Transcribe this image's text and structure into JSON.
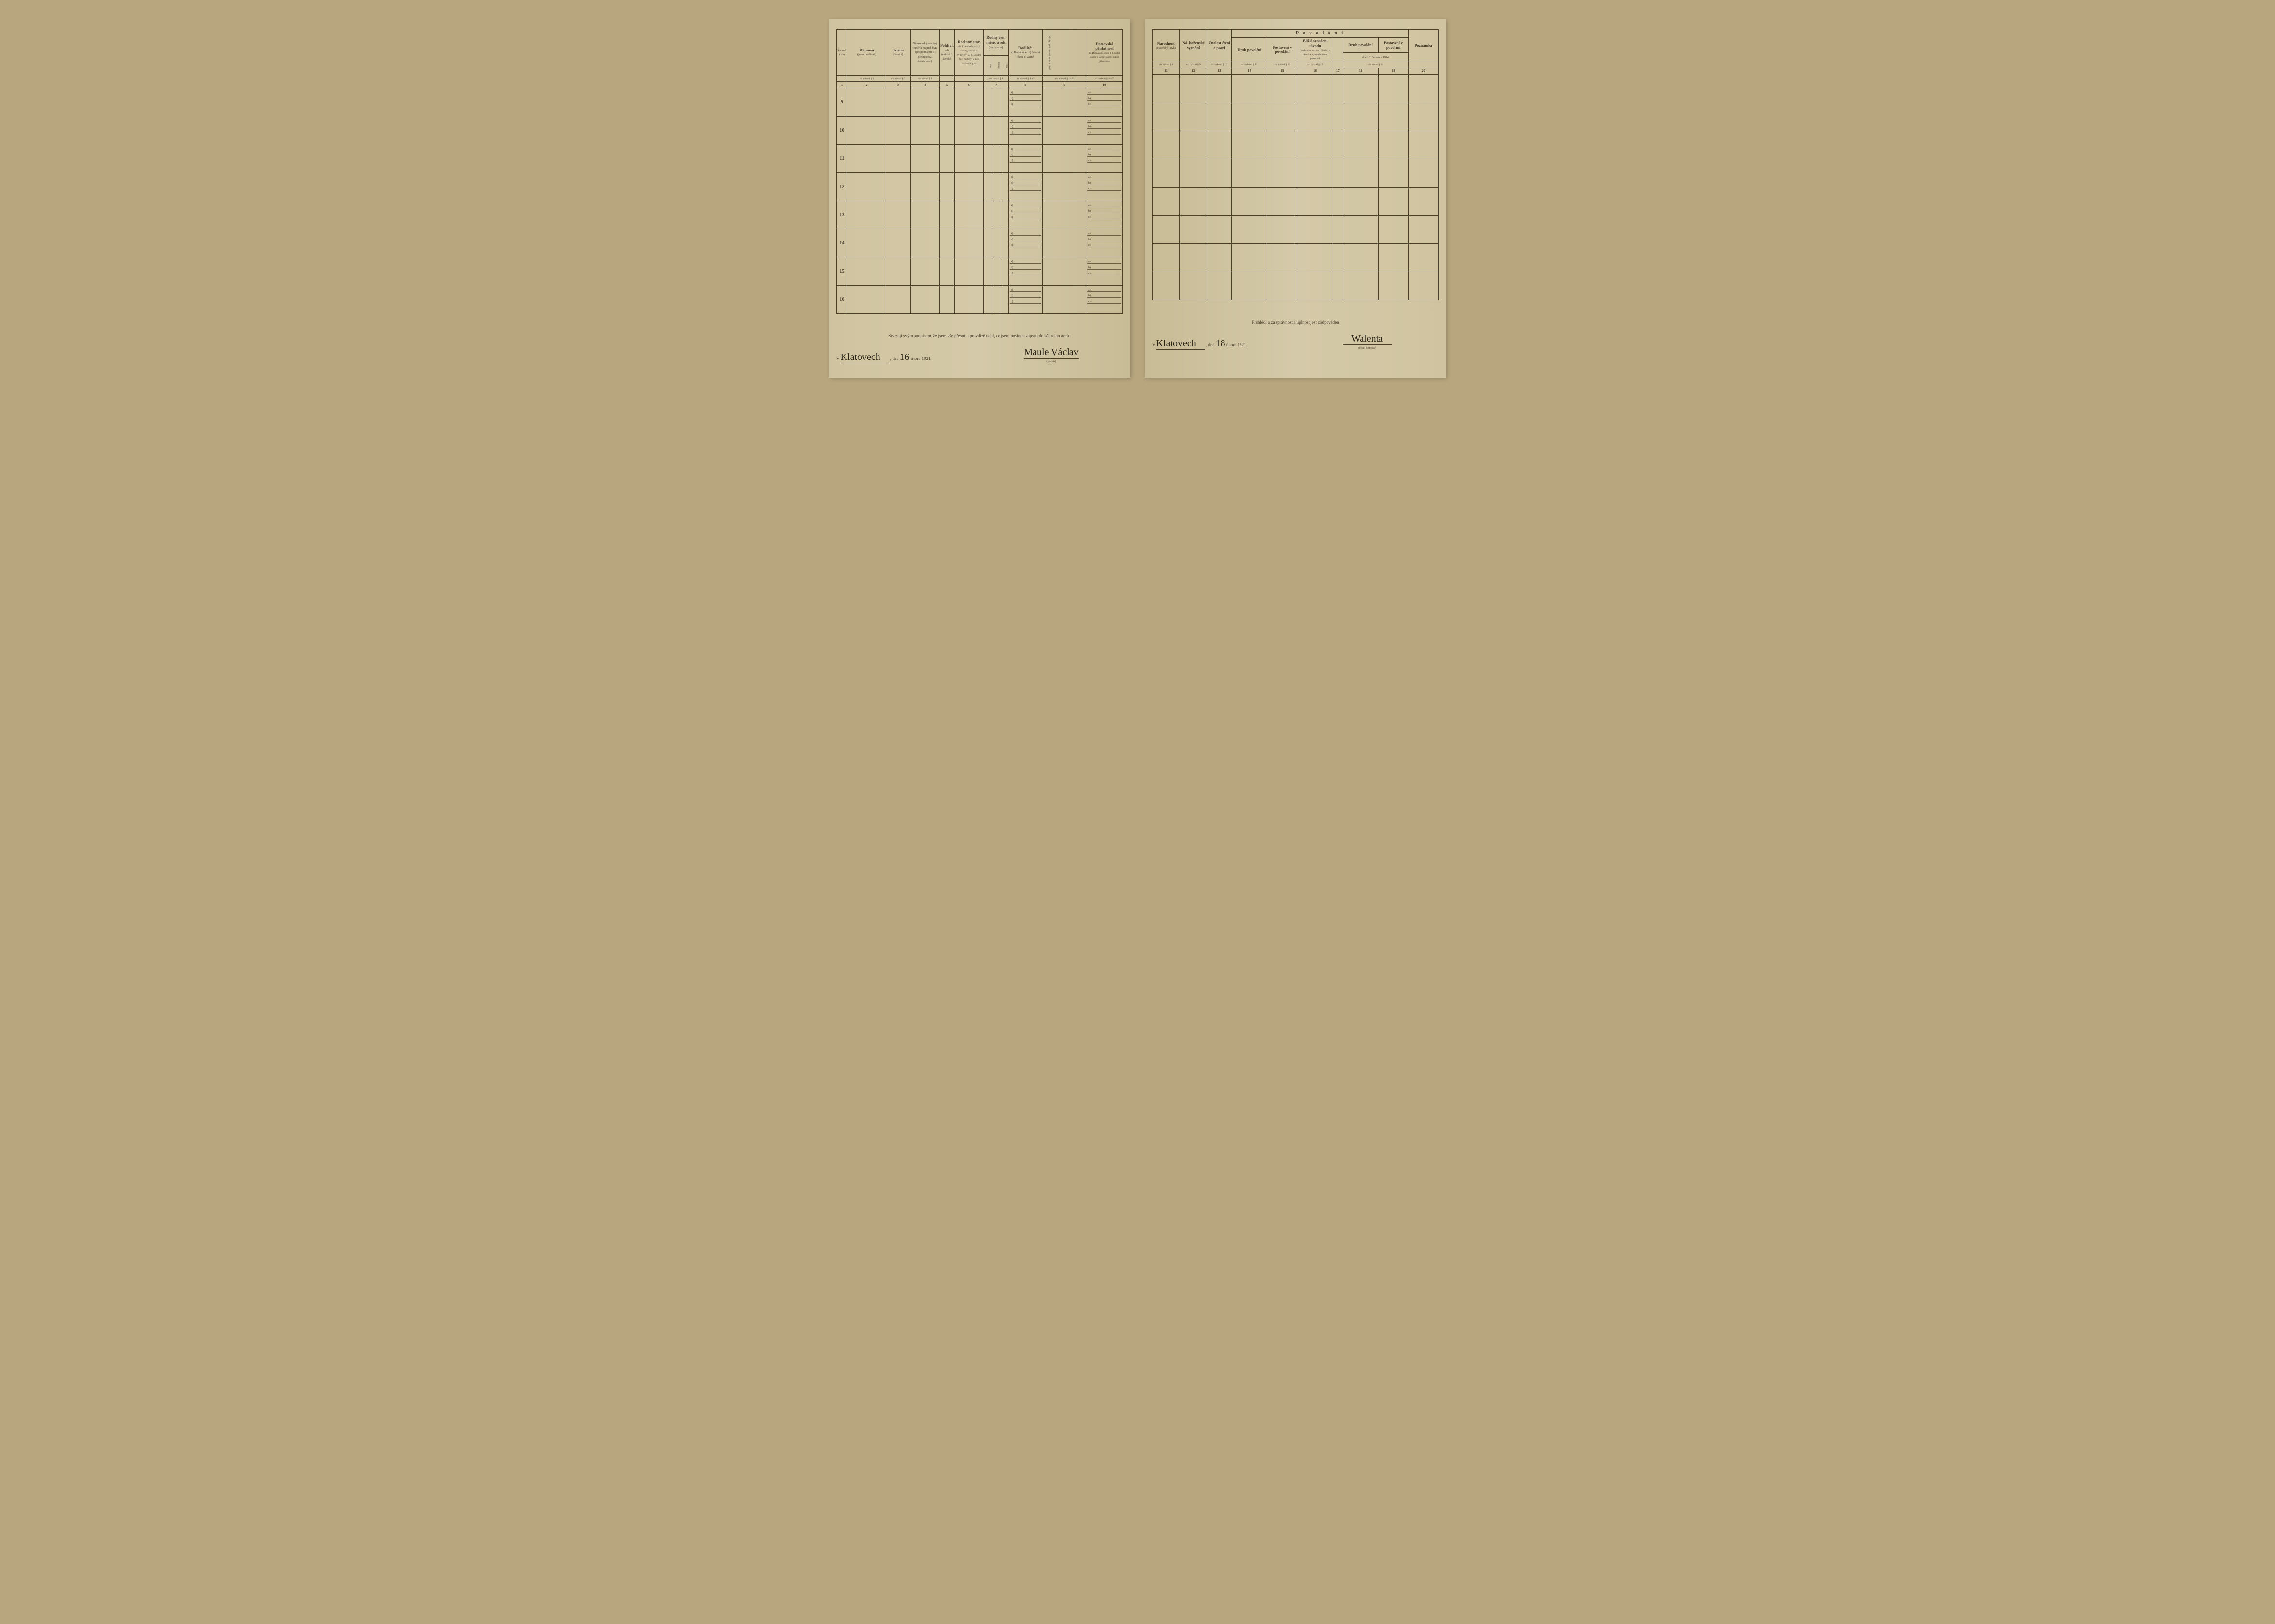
{
  "left": {
    "headers": {
      "col1": {
        "main": "Řadové číslo",
        "sub": ""
      },
      "col2": {
        "main": "Příjmení",
        "sub": "(jméno rodinné)"
      },
      "col3": {
        "main": "Jméno",
        "sub": "(křestní)"
      },
      "col4": {
        "main": "Příbuzenský neb jiný poměr k majiteli bytu",
        "sub": "(při podnájmu k přednostovi domácnosti)"
      },
      "col5": {
        "main": "Pohlaví,",
        "sub": "zda mužské č. ženské"
      },
      "col6": {
        "main": "Rodinný stav,",
        "sub": "zda 1. svobodný -á, 2. ženatý, vdaná 3. ovdovělý -á, 4. soudně roz- vedený -á neb rozloučený -á"
      },
      "col7": {
        "main": "Rodný den, měsíc a rok",
        "sub": "(narozen -a)",
        "s1": "dne",
        "s2": "měsíce",
        "s3": "roku"
      },
      "col8": {
        "main": "Rodiště:",
        "sub": "a) Rodná obec b) Soudní okres c) Země"
      },
      "col9": {
        "main": "Od kdy bydlí zapsaná osoba v obci?"
      },
      "col10": {
        "main": "Domovská příslušnost",
        "sub": "(a Domovská obec b Soudní okres c Země) aneb: státní příslušnost"
      }
    },
    "refs": {
      "c2": "viz návod § 1",
      "c3": "viz návod § 2",
      "c4": "viz návod § 3",
      "c7": "viz návod § 4",
      "c8": "viz návod § 4 a 5",
      "c9": "viz návod § 4 a 6",
      "c10": "viz návod § 4 a 7"
    },
    "nums": [
      "1",
      "2",
      "3",
      "4",
      "5",
      "6",
      "7",
      "8",
      "9",
      "10"
    ],
    "rows": [
      "9",
      "10",
      "11",
      "12",
      "13",
      "14",
      "15",
      "16"
    ],
    "footer": {
      "cert": "Stvrzuji svým podpisem, že jsem vše přesně a pravdivě udal, co jsem povinen zapsati do sčítacího archu",
      "place_sig": "Klatovech",
      "date_prefix": "V",
      "date_mid": ", dne",
      "date_day": "16",
      "date_rest": "února 1921.",
      "name_sig": "Maule Václav",
      "sig_label": "(podpis)"
    }
  },
  "right": {
    "headers": {
      "col11": {
        "main": "Národnost",
        "sub": "(mateřský jazyk)"
      },
      "col12": {
        "main": "Ná- boženské vyznání"
      },
      "col13": {
        "main": "Znalost čtení a psaní"
      },
      "povolani": "P o v o l á n í",
      "col14": {
        "main": "Druh povolání"
      },
      "col15": {
        "main": "Postavení v povolání"
      },
      "col16": {
        "main": "Bližší označení závodu",
        "sub": "(pod- niku, ústavu, úřadu), v němž se vykonává toto povolání"
      },
      "col17": {
        "main": "",
        "sub": ""
      },
      "col18": {
        "main": "Druh povolání",
        "sub": "dne 16. července 1914"
      },
      "col19": {
        "main": "Postavení v povolání"
      },
      "col20": {
        "main": "Poznámka"
      }
    },
    "refs": {
      "c11": "viz návod § 8",
      "c12": "viz návod § 9",
      "c13": "viz návod § 10",
      "c14": "viz návod § 11",
      "c15": "viz návod § 12",
      "c16": "viz návod § 13",
      "c18": "viz návod § 14"
    },
    "nums": [
      "11",
      "12",
      "13",
      "14",
      "15",
      "16",
      "17",
      "18",
      "19",
      "20"
    ],
    "footer": {
      "cert": "Prohlédl a za správnost a úplnost jest zodpověden",
      "place_sig": "Klatovech",
      "date_prefix": "V",
      "date_mid": ", dne",
      "date_day": "18",
      "date_rest": "února 1921.",
      "name_sig": "Walenta",
      "sig_label": "sčítací komisař."
    }
  },
  "abc": {
    "a": "a)",
    "b": "b)",
    "c": "c)"
  },
  "colors": {
    "paper": "#d4c9a8",
    "ink": "#4a4030",
    "bg": "#b8a67e"
  }
}
